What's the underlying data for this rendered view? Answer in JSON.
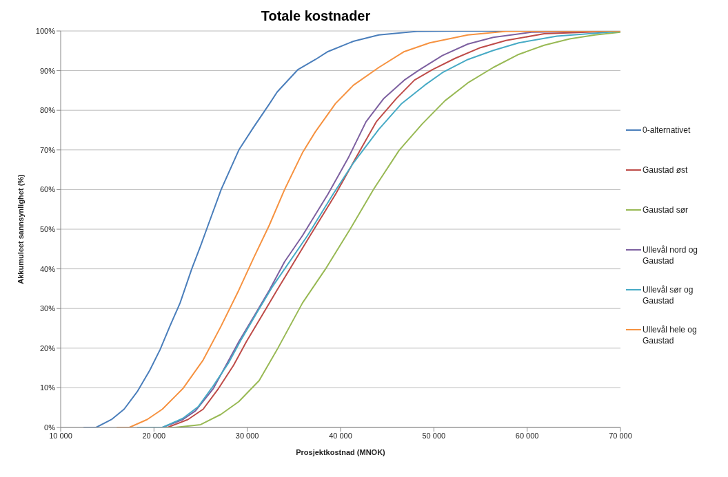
{
  "chart_data": {
    "type": "line",
    "title": "Totale kostnader",
    "xlabel": "Prosjektkostnad  (MNOK)",
    "ylabel": "Akkumuleet sannsynlighet (%)",
    "xlim": [
      10000,
      70000
    ],
    "xticks": [
      {
        "value": 10000,
        "label": "10 000"
      },
      {
        "value": 20000,
        "label": "20 000"
      },
      {
        "value": 30000,
        "label": "30 000"
      },
      {
        "value": 40000,
        "label": "40 000"
      },
      {
        "value": 50000,
        "label": "50 000"
      },
      {
        "value": 60000,
        "label": "60 000"
      },
      {
        "value": 70000,
        "label": "70 000"
      }
    ],
    "ylim": [
      0,
      100
    ],
    "yticks": [
      {
        "value": 0,
        "label": "0%"
      },
      {
        "value": 10,
        "label": "10%"
      },
      {
        "value": 20,
        "label": "20%"
      },
      {
        "value": 30,
        "label": "30%"
      },
      {
        "value": 40,
        "label": "40%"
      },
      {
        "value": 50,
        "label": "50%"
      },
      {
        "value": 60,
        "label": "60%"
      },
      {
        "value": 70,
        "label": "70%"
      },
      {
        "value": 80,
        "label": "80%"
      },
      {
        "value": 90,
        "label": "90%"
      },
      {
        "value": 100,
        "label": "100%"
      }
    ],
    "grid": "y",
    "legend": "right",
    "marker": "none",
    "line_style": "solid",
    "series": [
      {
        "name": "0-alternativet",
        "color": "#4a7ebb",
        "x": [
          12450,
          13800,
          15450,
          16800,
          18200,
          19550,
          20650,
          21700,
          22800,
          24050,
          25000,
          25800,
          27200,
          29100,
          30700,
          32400,
          33200,
          35400,
          37300,
          38640,
          41370,
          44100,
          48190,
          52280,
          70000
        ],
        "values": [
          0,
          0,
          2,
          4.6,
          9,
          14.4,
          19.6,
          25.5,
          31.4,
          40,
          45.8,
          51,
          60,
          70,
          75.8,
          81.7,
          84.6,
          90.2,
          92.8,
          94.8,
          97.4,
          99,
          99.9,
          100,
          100
        ]
      },
      {
        "name": "Gaustad øst",
        "color": "#be4b48",
        "x": [
          18200,
          21450,
          23640,
          25270,
          26910,
          28540,
          29900,
          31540,
          33180,
          36740,
          39460,
          41640,
          43830,
          46000,
          47920,
          49820,
          52280,
          55000,
          57740,
          61820,
          70000
        ],
        "values": [
          0,
          0,
          2,
          4.6,
          9.8,
          15.7,
          21.6,
          28.1,
          34.6,
          48.4,
          58.8,
          68,
          77.1,
          83,
          87.6,
          90.2,
          93.1,
          95.8,
          97.6,
          99.3,
          100
        ]
      },
      {
        "name": "Gaustad sør",
        "color": "#98b954",
        "x": [
          20360,
          22270,
          25000,
          27180,
          29090,
          31270,
          33190,
          35920,
          38370,
          41100,
          43550,
          46280,
          48730,
          51190,
          53640,
          56370,
          59100,
          61820,
          64550,
          67280,
          70000
        ],
        "values": [
          0,
          0,
          0.7,
          3.3,
          6.5,
          11.8,
          19.6,
          31.4,
          39.9,
          50.3,
          60.1,
          69.9,
          76.5,
          82.4,
          86.9,
          90.8,
          94.1,
          96.4,
          98,
          99,
          99.7
        ]
      },
      {
        "name": "Ullevål nord og Gaustad",
        "color": "#7d60a0",
        "x": [
          18200,
          20900,
          23100,
          24450,
          26360,
          27730,
          29090,
          30730,
          32360,
          34000,
          35920,
          38640,
          40830,
          42730,
          44640,
          46830,
          48460,
          50920,
          53640,
          56370,
          60460,
          70000
        ],
        "values": [
          0,
          0,
          2,
          4.2,
          9.8,
          15.7,
          21.6,
          28.1,
          34.6,
          41.8,
          48.4,
          58.8,
          68,
          77.1,
          83,
          87.6,
          90.2,
          93.8,
          96.7,
          98.4,
          99.7,
          100
        ]
      },
      {
        "name": "Ullevål sør og Gaustad",
        "color": "#46aac5",
        "x": [
          18200,
          20900,
          23100,
          24730,
          26360,
          28000,
          29360,
          31000,
          32640,
          36460,
          39190,
          41370,
          44100,
          46550,
          49010,
          50920,
          53640,
          56370,
          59100,
          63190,
          70000
        ],
        "values": [
          0,
          0,
          2.3,
          5.2,
          10.5,
          16.3,
          22.2,
          28.8,
          35.3,
          48.4,
          58.8,
          66.7,
          75.2,
          81.7,
          86.3,
          89.5,
          92.8,
          95.1,
          97,
          98.7,
          99.9
        ]
      },
      {
        "name": "Ullevål hele og Gaustad",
        "color": "#f69240",
        "x": [
          16000,
          17360,
          19270,
          20900,
          23100,
          25270,
          27180,
          29090,
          30730,
          32360,
          34000,
          35920,
          37280,
          39460,
          41370,
          44100,
          46830,
          49550,
          53640,
          57740,
          70000
        ],
        "values": [
          0,
          0,
          2,
          4.6,
          9.8,
          17,
          25.5,
          34.6,
          43,
          51,
          60,
          69.3,
          74.5,
          81.7,
          86.3,
          90.8,
          94.8,
          97,
          99,
          99.9,
          100
        ]
      }
    ]
  }
}
